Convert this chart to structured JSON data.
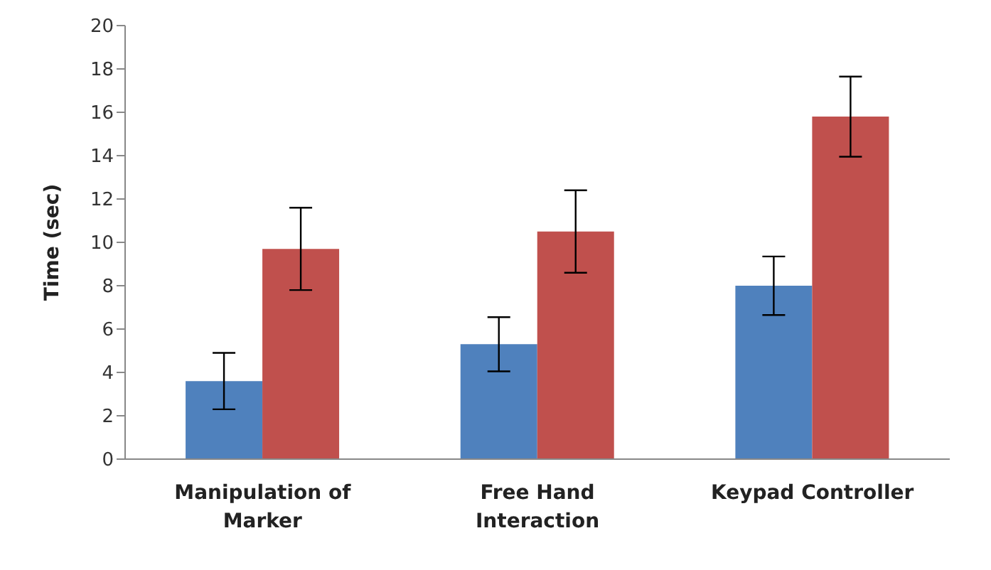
{
  "chart_data": {
    "type": "bar",
    "ylabel": "Time (sec)",
    "categories": [
      "Manipulation of Marker",
      "Free Hand Interaction",
      "Keypad Controller"
    ],
    "series": [
      {
        "color": "#4f81bd",
        "values": [
          3.6,
          5.3,
          8.0
        ],
        "errors": [
          1.3,
          1.25,
          1.35
        ]
      },
      {
        "color": "#c0504d",
        "values": [
          9.7,
          10.5,
          15.8
        ],
        "errors": [
          1.9,
          1.9,
          1.85
        ]
      }
    ],
    "ylim": [
      0,
      20
    ],
    "yticks": [
      0,
      2,
      4,
      6,
      8,
      10,
      12,
      14,
      16,
      18,
      20
    ],
    "grid": false,
    "legend": false
  }
}
